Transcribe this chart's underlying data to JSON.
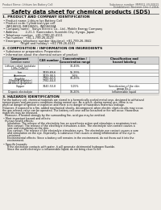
{
  "bg_color": "#f0ede8",
  "header_left": "Product Name: Lithium Ion Battery Cell",
  "header_right_line1": "Substance number: MM002-49-00815",
  "header_right_line2": "Established / Revision: Dec.7.2016",
  "title": "Safety data sheet for chemical products (SDS)",
  "section1_title": "1. PRODUCT AND COMPANY IDENTIFICATION",
  "section1_lines": [
    " • Product name: Lithium Ion Battery Cell",
    " • Product code: Cylindrical-type cell",
    "    INR18650J, INR18650L, INR18650A",
    " • Company name:   Sanyo Electric Co., Ltd., Mobile Energy Company",
    " • Address:        2-21-1  Kannondori, Suonishi-City, Hyogo, Japan",
    " • Telephone number:  +81-(799)-20-4111",
    " • Fax number:  +81-1-799-26-4129",
    " • Emergency telephone number (daytime): +81-799-26-3842",
    "                    (Night and holiday): +81-799-26-4101"
  ],
  "section2_title": "2. COMPOSITION / INFORMATION ON INGREDIENTS",
  "section2_intro": " • Substance or preparation: Preparation",
  "section2_sub": " • Information about the chemical nature of product:",
  "table_col0_header": "Component",
  "table_col0_sub": "Common name",
  "table_col1_header": "CAS number",
  "table_col2_header": "Concentration /",
  "table_col2_sub": "Concentration range",
  "table_col3_header": "Classification and",
  "table_col3_sub": "hazard labeling",
  "table_rows": [
    [
      "Lithium cobalt tantalate\n(LiMn-CoNiO₂)",
      "-",
      "30-40%",
      ""
    ],
    [
      "Iron",
      "7439-89-6",
      "15-25%",
      ""
    ],
    [
      "Aluminum",
      "7429-90-5",
      "2-6%",
      ""
    ],
    [
      "Graphite\n(Natural graphite)\n(Artificial graphite)",
      "7782-42-5\n7782-44-0",
      "10-25%",
      ""
    ],
    [
      "Copper",
      "7440-50-8",
      "5-15%",
      "Sensitization of the skin\ngroup No.2"
    ],
    [
      "Organic electrolyte",
      "-",
      "10-20%",
      "Inflammable liquid"
    ]
  ],
  "section3_title": "3. HAZARDS IDENTIFICATION",
  "section3_lines": [
    "For the battery cell, chemical materials are stored in a hermetically-sealed metal case, designed to withstand",
    "temperatures and pressures-conditions during normal use. As a result, during normal use, there is no",
    "physical danger of ignition or explosion and there is no danger of hazardous materials leakage.",
    "",
    "However, if exposed to a fire, added mechanical shocks, decomposed, when electric short-circuits may occur,",
    "the gas release valve can be operated. The battery cell case will be breached or fire will occur. Hazardous",
    "materials may be released.",
    "   Moreover, if heated strongly by the surrounding fire, acid gas may be emitted.",
    "",
    " • Most important hazard and effects:",
    "   Human health effects:",
    "      Inhalation: The release of the electrolyte has an anesthesia action and stimulates a respiratory tract.",
    "      Skin contact: The release of the electrolyte stimulates a skin. The electrolyte skin contact causes a",
    "      sore and stimulation on the skin.",
    "      Eye contact: The release of the electrolyte stimulates eyes. The electrolyte eye contact causes a sore",
    "      and stimulation on the eye. Especially, a substance that causes a strong inflammation of the eye is",
    "      contained.",
    "      Environmental effects: Since a battery cell remains in the environment, do not throw out it into the",
    "      environment.",
    "",
    " • Specific hazards:",
    "      If the electrolyte contacts with water, it will generate detrimental hydrogen fluoride.",
    "      Since the used electrolyte is inflammable liquid, do not bring close to fire."
  ]
}
